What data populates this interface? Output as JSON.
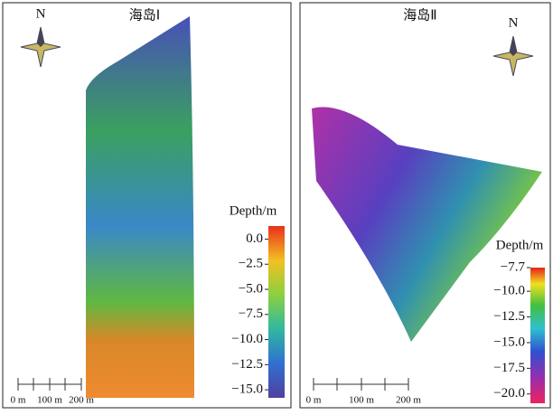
{
  "panels": [
    {
      "title": "海岛Ⅰ",
      "north": "N",
      "colorbar": {
        "title": "Depth/m",
        "lim": [
          1.3,
          -15.8
        ],
        "ticks": [
          {
            "value": 0,
            "label": "0.0"
          },
          {
            "value": -2.5,
            "label": "−2.5"
          },
          {
            "value": -5,
            "label": "−5.0"
          },
          {
            "value": -7.5,
            "label": "−7.5"
          },
          {
            "value": -10,
            "label": "−10.0"
          },
          {
            "value": -12.5,
            "label": "−12.5"
          },
          {
            "value": -15,
            "label": "−15.0"
          }
        ]
      },
      "scalebar": [
        "0 m",
        "100 m",
        "200 m"
      ]
    },
    {
      "title": "海岛Ⅱ",
      "north": "N",
      "colorbar": {
        "title": "Depth/m",
        "lim": [
          -7.7,
          -20.9
        ],
        "ticks": [
          {
            "value": -7.7,
            "label": "−7.7"
          },
          {
            "value": -10,
            "label": "−10.0"
          },
          {
            "value": -12.5,
            "label": "−12.5"
          },
          {
            "value": -15,
            "label": "−15.0"
          },
          {
            "value": -17.5,
            "label": "−17.5"
          },
          {
            "value": -20,
            "label": "−20.0"
          }
        ]
      },
      "scalebar": [
        "0 m",
        "100 m",
        "200 m"
      ]
    }
  ]
}
